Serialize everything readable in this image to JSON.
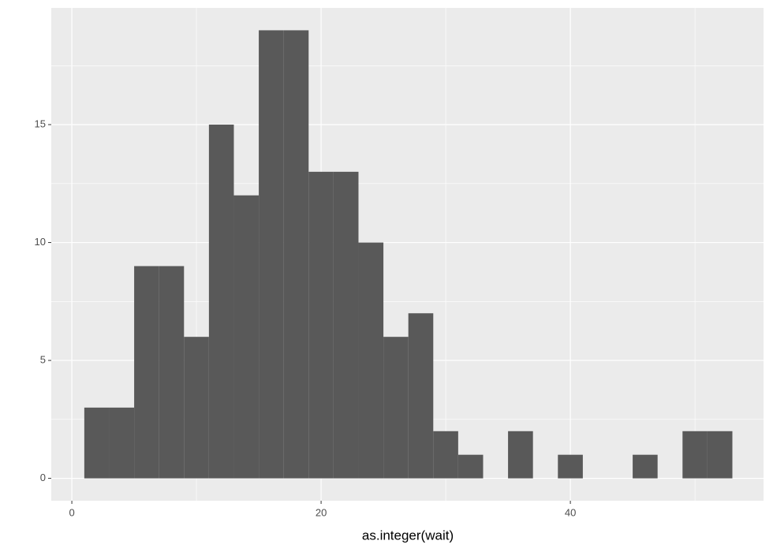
{
  "chart_data": {
    "type": "histogram",
    "x_label": "as.integer(wait)",
    "bins": [
      1,
      3,
      5,
      7,
      9,
      11,
      13,
      15,
      17,
      19,
      21,
      23,
      25,
      27,
      29,
      31,
      33,
      35,
      37,
      39,
      41,
      43,
      45,
      47,
      49,
      51,
      53
    ],
    "counts": [
      3,
      3,
      9,
      9,
      6,
      15,
      12,
      19,
      19,
      13,
      13,
      10,
      6,
      7,
      2,
      1,
      0,
      2,
      0,
      1,
      0,
      0,
      1,
      0,
      2,
      2
    ],
    "color": "#595959",
    "xlim": [
      -1.65,
      55.5
    ],
    "xticks": [
      0,
      20,
      40
    ],
    "ylim": [
      -0.95,
      19.95
    ],
    "yticks": [
      0,
      5,
      10,
      15
    ],
    "grid": true
  }
}
